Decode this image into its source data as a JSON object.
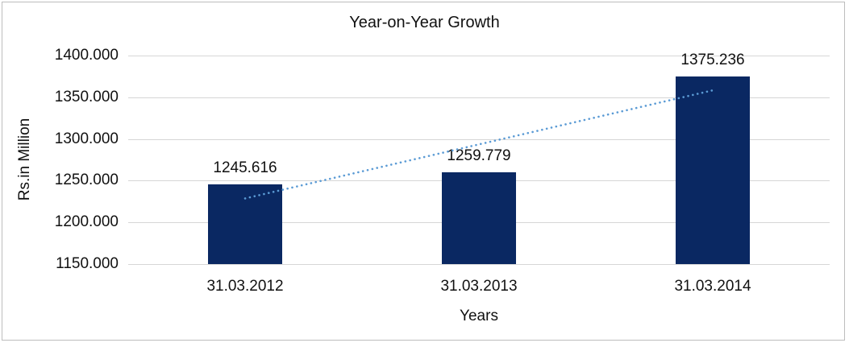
{
  "chart_data": {
    "type": "bar",
    "title": "Year-on-Year Growth",
    "xlabel": "Years",
    "ylabel": "Rs.in Million",
    "categories": [
      "31.03.2012",
      "31.03.2013",
      "31.03.2014"
    ],
    "series": [
      {
        "name": "Rs.in Million",
        "values": [
          1245.616,
          1259.779,
          1375.236
        ]
      }
    ],
    "data_labels": [
      "1245.616",
      "1259.779",
      "1375.236"
    ],
    "ylim": [
      1150,
      1400
    ],
    "y_ticks": [
      {
        "value": 1150,
        "label": "1150.000"
      },
      {
        "value": 1200,
        "label": "1200.000"
      },
      {
        "value": 1250,
        "label": "1250.000"
      },
      {
        "value": 1300,
        "label": "1300.000"
      },
      {
        "value": 1350,
        "label": "1350.000"
      },
      {
        "value": 1400,
        "label": "1400.000"
      }
    ],
    "grid": "horizontal-only",
    "legend": "none",
    "colors": {
      "bar_fill": "#0a2862",
      "trendline": "#5b9bd5",
      "gridline": "#d6d6d6",
      "frame_border": "#bdbdbd",
      "text": "#111111"
    },
    "trendline": {
      "type": "linear",
      "style": "dotted",
      "start_category_index": 0,
      "end_category_index": 2,
      "start_value": 1228.7,
      "end_value": 1358.3
    }
  }
}
